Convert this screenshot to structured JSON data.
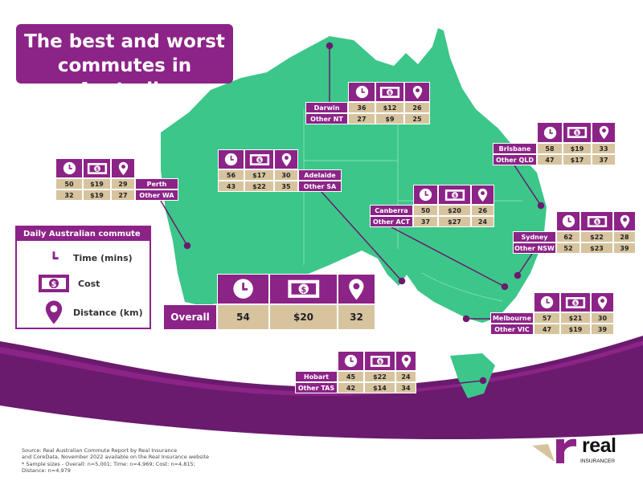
{
  "title": "The best and worst commutes in Australia",
  "colors": {
    "purple": "#8c2387",
    "map_green": "#3cc68a",
    "value_tan": "#d7c49f"
  },
  "column_icons": [
    "clock-icon",
    "cash-icon",
    "location-pin-icon"
  ],
  "legend": {
    "heading": "Daily Australian commute",
    "items": [
      {
        "icon": "clock-icon",
        "label": "Time (mins)"
      },
      {
        "icon": "cash-icon",
        "label": "Cost"
      },
      {
        "icon": "location-pin-icon",
        "label": "Distance (km)"
      }
    ]
  },
  "tables": [
    {
      "id": "nt",
      "rows": [
        {
          "label": "Darwin",
          "values": [
            "36",
            "$12",
            "26"
          ]
        },
        {
          "label": "Other NT",
          "values": [
            "27",
            "$9",
            "25"
          ]
        }
      ]
    },
    {
      "id": "qld",
      "rows": [
        {
          "label": "Brisbane",
          "values": [
            "58",
            "$19",
            "33"
          ]
        },
        {
          "label": "Other QLD",
          "values": [
            "47",
            "$17",
            "37"
          ]
        }
      ]
    },
    {
      "id": "wa",
      "rows": [
        {
          "label": "Perth",
          "values": [
            "50",
            "$19",
            "29"
          ]
        },
        {
          "label": "Other WA",
          "values": [
            "32",
            "$19",
            "27"
          ]
        }
      ]
    },
    {
      "id": "sa",
      "rows": [
        {
          "label": "Adelaide",
          "values": [
            "56",
            "$17",
            "30"
          ]
        },
        {
          "label": "Other SA",
          "values": [
            "43",
            "$22",
            "35"
          ]
        }
      ]
    },
    {
      "id": "act",
      "rows": [
        {
          "label": "Canberra",
          "values": [
            "50",
            "$20",
            "26"
          ]
        },
        {
          "label": "Other ACT",
          "values": [
            "37",
            "$27",
            "24"
          ]
        }
      ]
    },
    {
      "id": "nsw",
      "rows": [
        {
          "label": "Sydney",
          "values": [
            "62",
            "$22",
            "28"
          ]
        },
        {
          "label": "Other NSW",
          "values": [
            "52",
            "$23",
            "39"
          ]
        }
      ]
    },
    {
      "id": "vic",
      "rows": [
        {
          "label": "Melbourne",
          "values": [
            "57",
            "$21",
            "30"
          ]
        },
        {
          "label": "Other VIC",
          "values": [
            "47",
            "$19",
            "39"
          ]
        }
      ]
    },
    {
      "id": "tas",
      "rows": [
        {
          "label": "Hobart",
          "values": [
            "45",
            "$22",
            "24"
          ]
        },
        {
          "label": "Other TAS",
          "values": [
            "42",
            "$14",
            "34"
          ]
        }
      ]
    },
    {
      "id": "overall",
      "rows": [
        {
          "label": "Overall",
          "values": [
            "54",
            "$20",
            "32"
          ]
        }
      ]
    }
  ],
  "source": {
    "line1": "Source: Real Australian Commute Report by Real Insurance",
    "line2": "and CoreData, November 2022 available on the Real Insurance website",
    "line3": "* Sample sizes - Overall: n=5,001; Time: n=4,969; Cost: n=4,815;",
    "line4": "Distance: n=4,979"
  },
  "logo": {
    "word": "real",
    "sub": "INSURANCE®"
  }
}
